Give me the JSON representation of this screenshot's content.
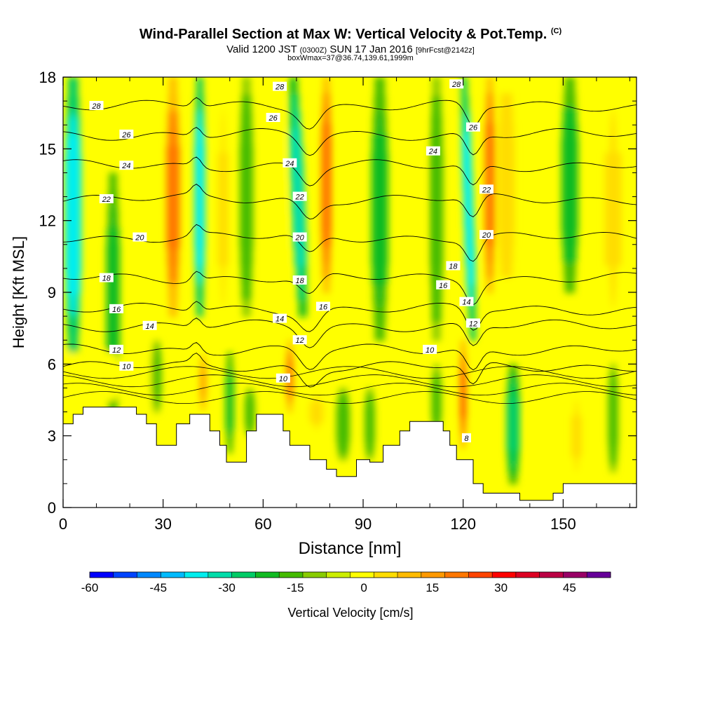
{
  "header": {
    "title_main": "Wind-Parallel Section at Max W: Vertical Velocity & Pot.Temp.",
    "title_copy": "(C)",
    "sub_valid": "Valid 1200 JST",
    "sub_utc": "(0300Z)",
    "sub_date": "SUN 17 Jan 2016",
    "sub_fcst": "[9hrFcst@2142z]",
    "sub_box": "boxWmax=37@36.74,139.61,1999m"
  },
  "chart_data": {
    "type": "heatmap",
    "title": "Wind-Parallel Section at Max W: Vertical Velocity & Pot.Temp.",
    "xlabel": "Distance [nm]",
    "ylabel": "Height [Kft MSL]",
    "xlim": [
      0,
      172
    ],
    "ylim": [
      0,
      18
    ],
    "x_ticks": [
      0,
      30,
      60,
      90,
      120,
      150
    ],
    "y_ticks": [
      0,
      3,
      6,
      9,
      12,
      15,
      18
    ],
    "colorbar": {
      "label": "Vertical Velocity [cm/s]",
      "range": [
        -60,
        54
      ],
      "step": 6,
      "ticks": [
        -60,
        -45,
        -30,
        -15,
        0,
        15,
        30,
        45
      ],
      "colors": [
        "#0000ff",
        "#0044ff",
        "#0088ff",
        "#00bbff",
        "#00eeee",
        "#00ddaa",
        "#00cc66",
        "#11bb22",
        "#44bb00",
        "#88cc00",
        "#ccee00",
        "#ffff00",
        "#ffdd00",
        "#ffbb00",
        "#ff9900",
        "#ff7700",
        "#ff4400",
        "#ff0000",
        "#dd0022",
        "#bb0044",
        "#990066",
        "#660099"
      ]
    },
    "vertical_velocity_features": [
      {
        "x": 3,
        "w": 5,
        "z0": 6.5,
        "z1": 18,
        "value": -36,
        "tilt": 0
      },
      {
        "x": 15,
        "w": 4,
        "z0": 3.5,
        "z1": 14,
        "value": -15,
        "tilt": 0
      },
      {
        "x": 26,
        "w": 4,
        "z0": 4,
        "z1": 12,
        "value": 9,
        "tilt": 0
      },
      {
        "x": 33,
        "w": 4,
        "z0": 8,
        "z1": 18,
        "value": 30,
        "tilt": 0
      },
      {
        "x": 41,
        "w": 3.2,
        "z0": 8,
        "z1": 18,
        "value": -36,
        "tilt": 0
      },
      {
        "x": 48,
        "w": 3,
        "z0": 7,
        "z1": 18,
        "value": 12,
        "tilt": 0
      },
      {
        "x": 55,
        "w": 4,
        "z0": 8,
        "z1": 18,
        "value": -12,
        "tilt": 0
      },
      {
        "x": 64,
        "w": 4,
        "z0": 8,
        "z1": 18,
        "value": 9,
        "tilt": 0
      },
      {
        "x": 72,
        "w": 4,
        "z0": 8,
        "z1": 18,
        "value": -30,
        "tilt": -0.3
      },
      {
        "x": 79,
        "w": 3.2,
        "z0": 9,
        "z1": 18,
        "value": 33,
        "tilt": 0
      },
      {
        "x": 85,
        "w": 4,
        "z0": 8,
        "z1": 18,
        "value": 9,
        "tilt": 0
      },
      {
        "x": 95,
        "w": 5,
        "z0": 7,
        "z1": 18,
        "value": -15,
        "tilt": 0
      },
      {
        "x": 106,
        "w": 4,
        "z0": 7,
        "z1": 18,
        "value": 9,
        "tilt": 0
      },
      {
        "x": 112,
        "w": 4,
        "z0": 7,
        "z1": 18,
        "value": -12,
        "tilt": 0
      },
      {
        "x": 123,
        "w": 3,
        "z0": 7,
        "z1": 18,
        "value": -36,
        "tilt": -0.25
      },
      {
        "x": 128,
        "w": 3,
        "z0": 9,
        "z1": 18,
        "value": 33,
        "tilt": 0
      },
      {
        "x": 133,
        "w": 5,
        "z0": 9,
        "z1": 18,
        "value": 15,
        "tilt": 0
      },
      {
        "x": 152,
        "w": 5,
        "z0": 9,
        "z1": 18,
        "value": -18,
        "tilt": 0
      },
      {
        "x": 165,
        "w": 5,
        "z0": 7,
        "z1": 18,
        "value": 12,
        "tilt": 0
      },
      {
        "x": 2,
        "w": 4,
        "z0": 4,
        "z1": 6.5,
        "value": 9,
        "tilt": 0
      },
      {
        "x": 14,
        "w": 6,
        "z0": 4.5,
        "z1": 6.5,
        "value": 6,
        "tilt": 0
      },
      {
        "x": 28,
        "w": 3,
        "z0": 4,
        "z1": 7,
        "value": -12,
        "tilt": 0
      },
      {
        "x": 42,
        "w": 1.8,
        "z0": 4,
        "z1": 6.5,
        "value": 24,
        "tilt": 0
      },
      {
        "x": 50,
        "w": 2.5,
        "z0": 2.3,
        "z1": 6.5,
        "value": -15,
        "tilt": 0
      },
      {
        "x": 56,
        "w": 3,
        "z0": 3,
        "z1": 5,
        "value": -12,
        "tilt": 0
      },
      {
        "x": 68,
        "w": 2,
        "z0": 4,
        "z1": 7,
        "value": 30,
        "tilt": 0
      },
      {
        "x": 76,
        "w": 4,
        "z0": 3,
        "z1": 5,
        "value": 12,
        "tilt": 0
      },
      {
        "x": 84,
        "w": 4,
        "z0": 2,
        "z1": 5,
        "value": -12,
        "tilt": 0
      },
      {
        "x": 92,
        "w": 3,
        "z0": 2,
        "z1": 5,
        "value": -12,
        "tilt": 0
      },
      {
        "x": 105,
        "w": 3,
        "z0": 3,
        "z1": 5,
        "value": 9,
        "tilt": 0
      },
      {
        "x": 112,
        "w": 3,
        "z0": 3,
        "z1": 6,
        "value": -9,
        "tilt": 0
      },
      {
        "x": 120,
        "w": 1.6,
        "z0": 2.5,
        "z1": 7,
        "value": 36,
        "tilt": 0
      },
      {
        "x": 135,
        "w": 4,
        "z0": 1,
        "z1": 6,
        "value": -20,
        "tilt": 0
      },
      {
        "x": 142,
        "w": 3,
        "z0": 1,
        "z1": 5,
        "value": 9,
        "tilt": 0
      },
      {
        "x": 154,
        "w": 3,
        "z0": 1,
        "z1": 5,
        "value": 12,
        "tilt": 0
      },
      {
        "x": 165,
        "w": 3,
        "z0": 1.5,
        "z1": 6,
        "value": -12,
        "tilt": 0
      }
    ],
    "background_value": 6,
    "theta_levels": [
      {
        "value": 10,
        "z": 5.9,
        "label_x": 19
      },
      {
        "value": 12,
        "z": 6.6,
        "label_x": 16
      },
      {
        "value": 14,
        "z": 7.6,
        "label_x": 26
      },
      {
        "value": 16,
        "z": 8.3,
        "label_x": 16
      },
      {
        "value": 18,
        "z": 9.6,
        "label_x": 13
      },
      {
        "value": 20,
        "z": 11.3,
        "label_x": 23
      },
      {
        "value": 22,
        "z": 12.9,
        "label_x": 13
      },
      {
        "value": 24,
        "z": 14.3,
        "label_x": 19
      },
      {
        "value": 26,
        "z": 15.6,
        "label_x": 19
      },
      {
        "value": 28,
        "z": 16.8,
        "label_x": 10
      }
    ],
    "theta_extra_labels": [
      {
        "text": "28",
        "x": 65,
        "z": 17.6
      },
      {
        "text": "26",
        "x": 63,
        "z": 16.3
      },
      {
        "text": "24",
        "x": 68,
        "z": 14.4
      },
      {
        "text": "22",
        "x": 71,
        "z": 13
      },
      {
        "text": "20",
        "x": 71,
        "z": 11.3
      },
      {
        "text": "18",
        "x": 71,
        "z": 9.5
      },
      {
        "text": "16",
        "x": 78,
        "z": 8.4
      },
      {
        "text": "14",
        "x": 65,
        "z": 7.9
      },
      {
        "text": "12",
        "x": 71,
        "z": 7
      },
      {
        "text": "10",
        "x": 66,
        "z": 5.4
      },
      {
        "text": "28",
        "x": 118,
        "z": 17.7
      },
      {
        "text": "26",
        "x": 123,
        "z": 15.9
      },
      {
        "text": "24",
        "x": 111,
        "z": 14.9
      },
      {
        "text": "22",
        "x": 127,
        "z": 13.3
      },
      {
        "text": "20",
        "x": 127,
        "z": 11.4
      },
      {
        "text": "18",
        "x": 117,
        "z": 10.1
      },
      {
        "text": "16",
        "x": 114,
        "z": 9.3
      },
      {
        "text": "14",
        "x": 121,
        "z": 8.6
      },
      {
        "text": "12",
        "x": 123,
        "z": 7.7
      },
      {
        "text": "10",
        "x": 110,
        "z": 6.6
      },
      {
        "text": "8",
        "x": 121,
        "z": 2.9
      }
    ],
    "terrain_kft": [
      [
        0,
        3.5
      ],
      [
        3,
        3.5
      ],
      [
        3,
        3.9
      ],
      [
        6,
        3.9
      ],
      [
        6,
        4.2
      ],
      [
        22,
        4.2
      ],
      [
        22,
        3.9
      ],
      [
        25,
        3.9
      ],
      [
        25,
        3.5
      ],
      [
        28,
        3.5
      ],
      [
        28,
        2.6
      ],
      [
        34,
        2.6
      ],
      [
        34,
        3.5
      ],
      [
        38,
        3.5
      ],
      [
        38,
        3.9
      ],
      [
        44,
        3.9
      ],
      [
        44,
        3.2
      ],
      [
        47,
        3.2
      ],
      [
        47,
        2.6
      ],
      [
        49,
        2.6
      ],
      [
        49,
        1.9
      ],
      [
        55,
        1.9
      ],
      [
        55,
        3.2
      ],
      [
        58,
        3.2
      ],
      [
        58,
        3.9
      ],
      [
        66,
        3.9
      ],
      [
        66,
        3.2
      ],
      [
        68,
        3.2
      ],
      [
        68,
        2.6
      ],
      [
        74,
        2.6
      ],
      [
        74,
        2.0
      ],
      [
        79,
        2.0
      ],
      [
        79,
        1.6
      ],
      [
        82,
        1.6
      ],
      [
        82,
        1.3
      ],
      [
        88,
        1.3
      ],
      [
        88,
        2.0
      ],
      [
        92,
        2.0
      ],
      [
        92,
        1.9
      ],
      [
        96,
        1.9
      ],
      [
        96,
        2.6
      ],
      [
        101,
        2.6
      ],
      [
        101,
        3.2
      ],
      [
        104,
        3.2
      ],
      [
        104,
        3.6
      ],
      [
        114,
        3.6
      ],
      [
        114,
        3.2
      ],
      [
        116,
        3.2
      ],
      [
        116,
        2.6
      ],
      [
        118,
        2.6
      ],
      [
        118,
        2.0
      ],
      [
        123,
        2.0
      ],
      [
        123,
        1.0
      ],
      [
        126,
        1.0
      ],
      [
        126,
        0.6
      ],
      [
        137,
        0.6
      ],
      [
        137,
        0.3
      ],
      [
        147,
        0.3
      ],
      [
        147,
        0.6
      ],
      [
        150,
        0.6
      ],
      [
        150,
        1.0
      ],
      [
        172,
        1.0
      ]
    ]
  }
}
